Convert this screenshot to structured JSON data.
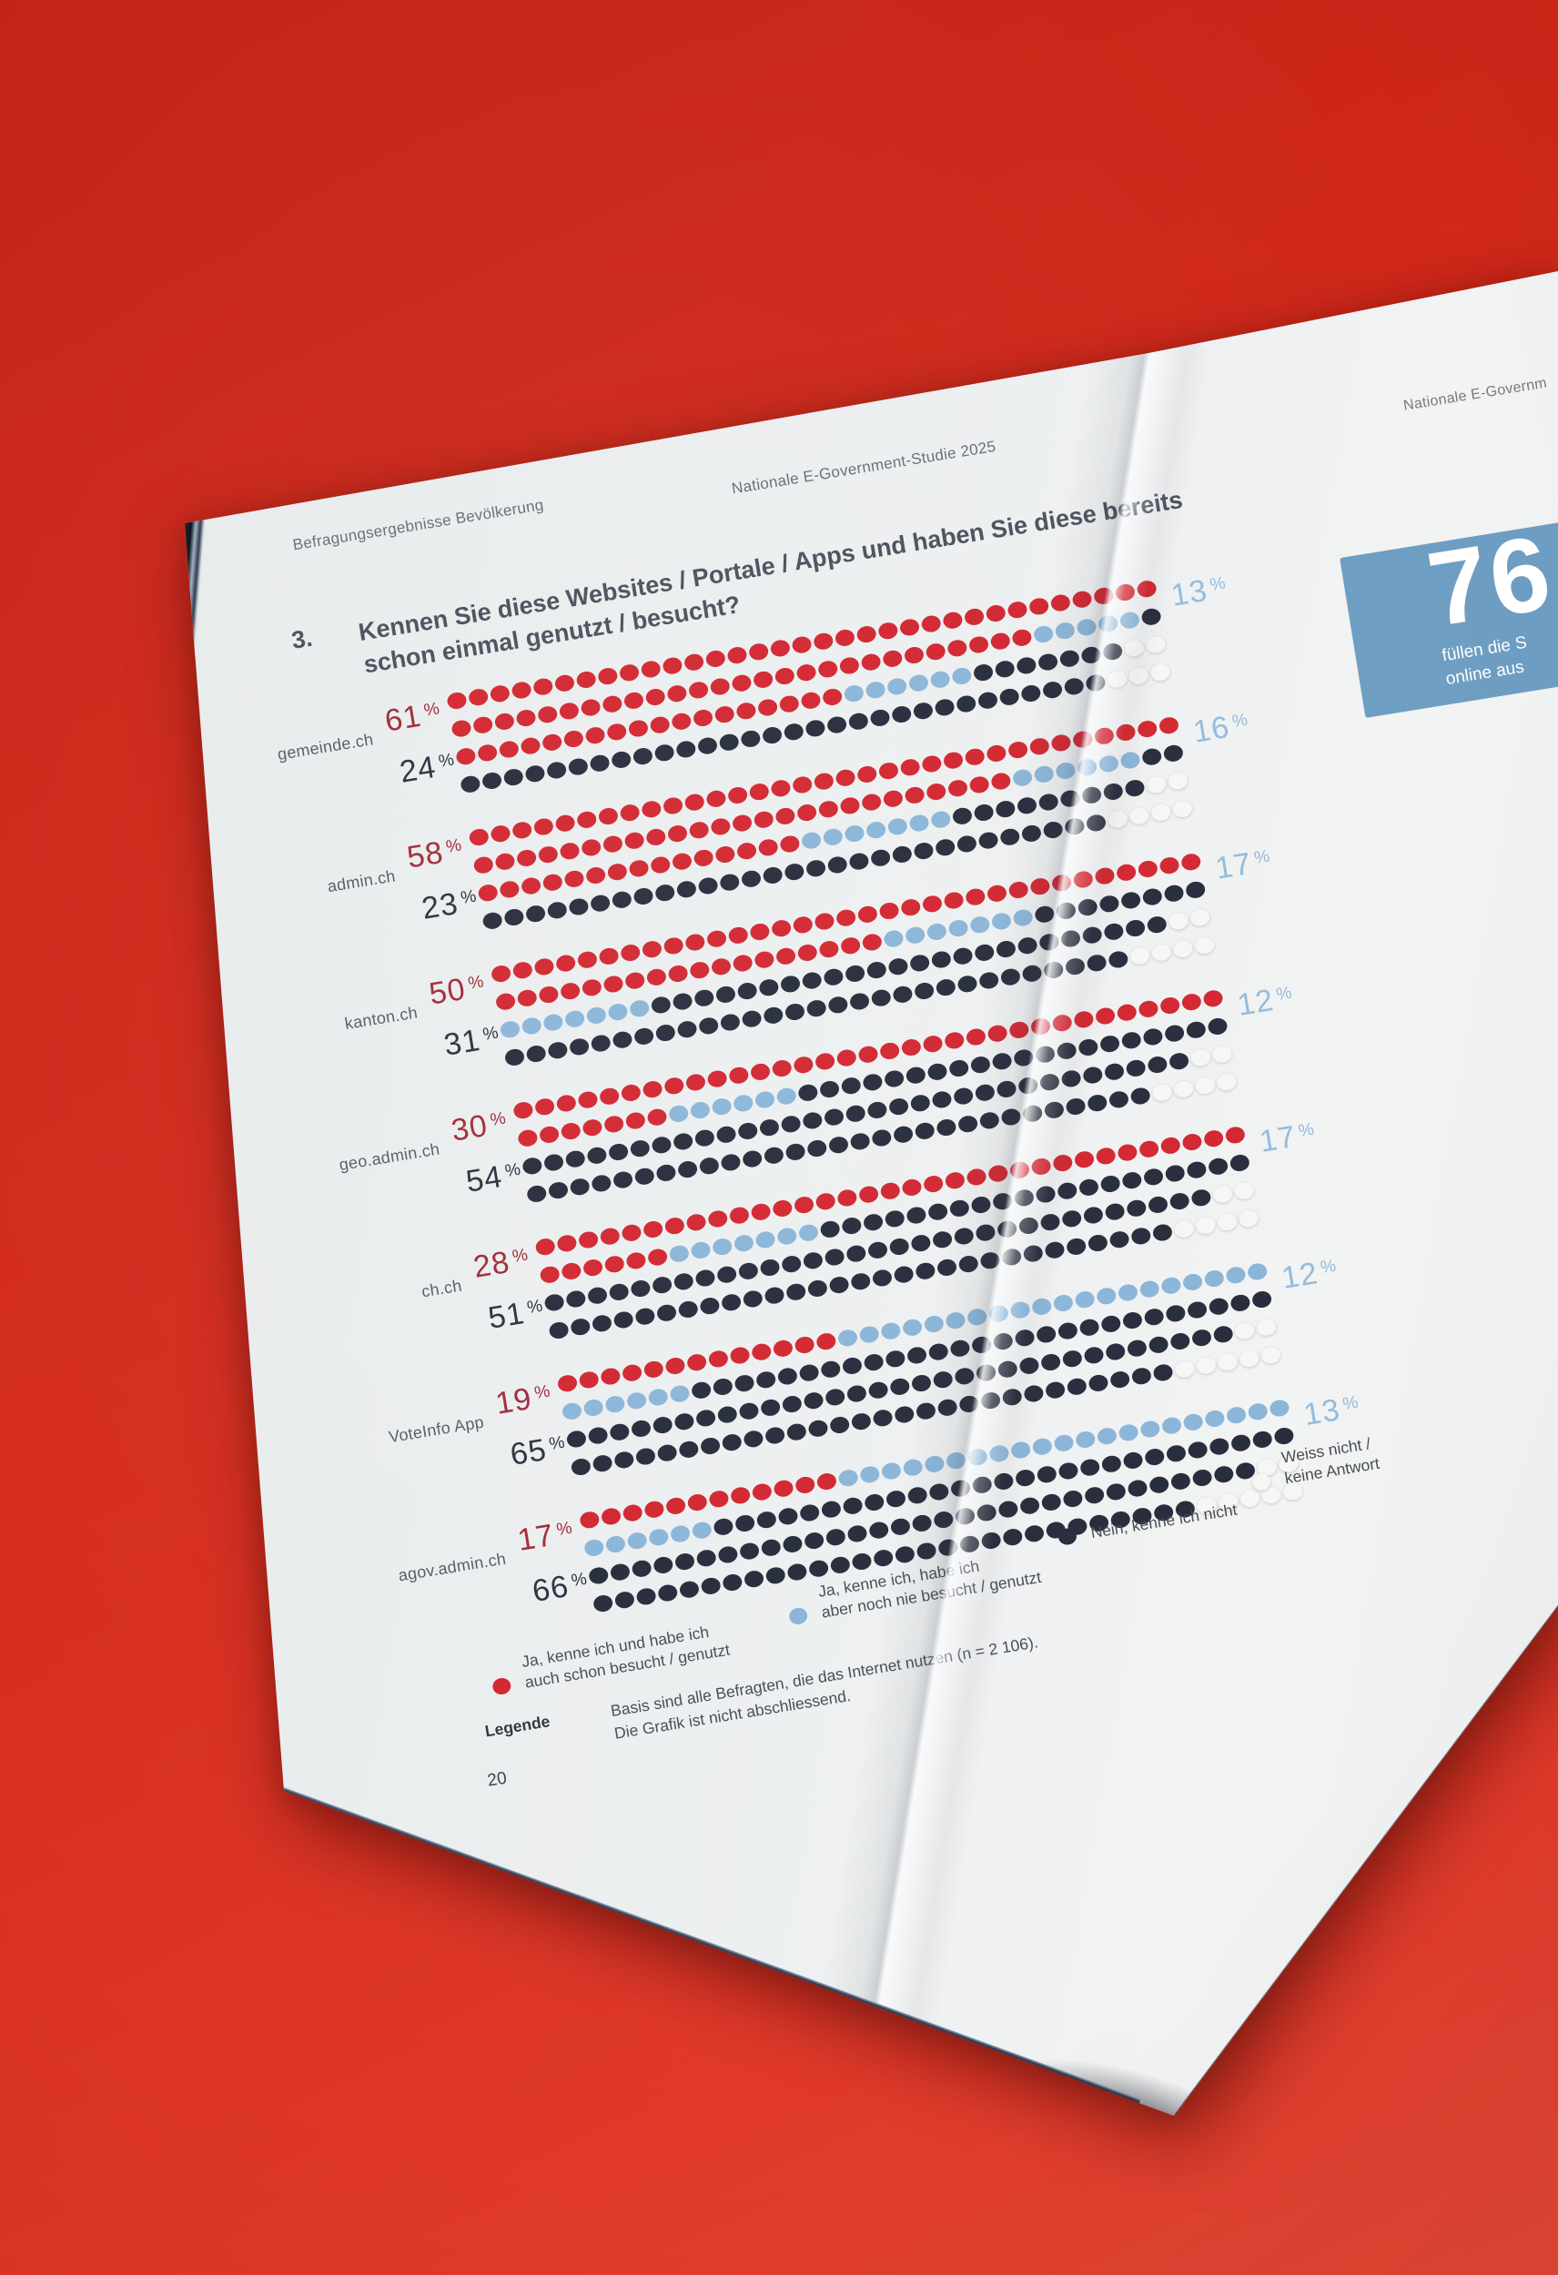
{
  "page": {
    "header_left": "Befragungsergebnisse Bevölkerung",
    "header_right": "Nationale E-Government-Studie 2025",
    "question_number": "3.",
    "question_line1": "Kennen Sie diese Websites / Portale / Apps und haben Sie diese bereits",
    "question_line2": "schon einmal genutzt / besucht?",
    "legend_label": "Legende",
    "basis_line1": "Basis sind alle Befragten, die das Internet nutzen (n = 2 106).",
    "basis_line2": "Die Grafik ist nicht abschliessend.",
    "page_number": "20"
  },
  "right_page": {
    "header": "Nationale E-Governm",
    "stat_value": "76",
    "stat_line1": "füllen die S",
    "stat_line2": "online aus"
  },
  "colors": {
    "backdrop_red": "#d62d1f",
    "paper": "#edeff0",
    "dot_red": "#d2252f",
    "dot_blue": "#8ab5d8",
    "dot_dark": "#262b3b",
    "dot_white": "#f6f7f5",
    "num_red": "#a02a36",
    "num_dark": "#2b3040",
    "num_blue": "#93bbdc",
    "box_blue": "#6d9dc2"
  },
  "chart_data": {
    "type": "waffle-dot",
    "title": "Kennen Sie diese Websites / Portale / Apps und haben Sie diese bereits schon einmal genutzt / besucht?",
    "unit": "%",
    "note": "Basis sind alle Befragten, die das Internet nutzen (n = 2 106). Die Grafik ist nicht abschliessend.",
    "legend_position": "bottom",
    "legend": [
      {
        "key": "r",
        "lines": [
          "Ja, kenne ich und habe ich",
          "auch schon besucht / genutzt"
        ]
      },
      {
        "key": "b",
        "lines": [
          "Ja, kenne ich, habe ich",
          "aber noch nie besucht / genutzt"
        ]
      },
      {
        "key": "d",
        "lines": [
          "Nein, kenne ich nicht"
        ]
      },
      {
        "key": "w",
        "lines": [
          "Weiss nicht /",
          "keine Antwort"
        ]
      }
    ],
    "series": [
      {
        "label": "gemeinde.ch",
        "known_and_used": 61,
        "known_not_used": 13,
        "not_known": 24,
        "dot_rows": [
          [
            "r33"
          ],
          [
            "r27",
            "b5",
            "d1"
          ],
          [
            "r18",
            "b6",
            "d7",
            "w2"
          ],
          [
            "d30",
            "w3"
          ]
        ]
      },
      {
        "label": "admin.ch",
        "known_and_used": 58,
        "known_not_used": 16,
        "not_known": 23,
        "dot_rows": [
          [
            "r33"
          ],
          [
            "r25",
            "b6",
            "d2"
          ],
          [
            "r15",
            "b7",
            "d9",
            "w2"
          ],
          [
            "d29",
            "w4"
          ]
        ]
      },
      {
        "label": "kanton.ch",
        "known_and_used": 50,
        "known_not_used": 17,
        "not_known": 31,
        "dot_rows": [
          [
            "r33"
          ],
          [
            "r18",
            "b7",
            "d8"
          ],
          [
            "b7",
            "d24",
            "w2"
          ],
          [
            "d29",
            "w4"
          ]
        ]
      },
      {
        "label": "geo.admin.ch",
        "known_and_used": 30,
        "known_not_used": 12,
        "not_known": 54,
        "dot_rows": [
          [
            "r33"
          ],
          [
            "r7",
            "b6",
            "d20"
          ],
          [
            "d31",
            "w2"
          ],
          [
            "d29",
            "w4"
          ]
        ]
      },
      {
        "label": "ch.ch",
        "known_and_used": 28,
        "known_not_used": 17,
        "not_known": 51,
        "dot_rows": [
          [
            "r33"
          ],
          [
            "r6",
            "b7",
            "d20"
          ],
          [
            "d31",
            "w2"
          ],
          [
            "d29",
            "w4"
          ]
        ]
      },
      {
        "label": "VoteInfo App",
        "known_and_used": 19,
        "known_not_used": 12,
        "not_known": 65,
        "dot_rows": [
          [
            "r13",
            "b20"
          ],
          [
            "b6",
            "d27"
          ],
          [
            "d31",
            "w2"
          ],
          [
            "d28",
            "w5"
          ]
        ]
      },
      {
        "label": "agov.admin.ch",
        "known_and_used": 17,
        "known_not_used": 13,
        "not_known": 66,
        "dot_rows": [
          [
            "r12",
            "b21"
          ],
          [
            "b6",
            "d27"
          ],
          [
            "d31",
            "w2"
          ],
          [
            "d28",
            "w5"
          ]
        ]
      }
    ]
  }
}
